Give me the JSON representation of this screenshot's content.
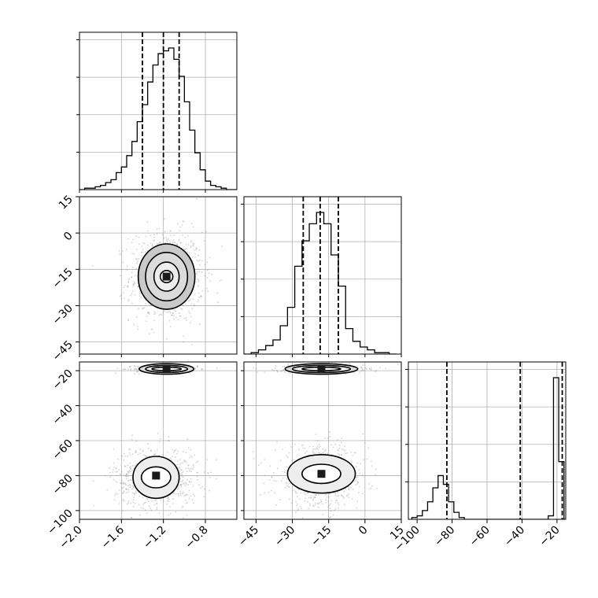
{
  "chart_data": {
    "type": "corner",
    "colors": {
      "line": "#000000",
      "grid": "#b0b0b0",
      "scatter": "#808080",
      "axes_bg": "#ffffff"
    },
    "grid": true,
    "parameters": [
      {
        "index": 0,
        "range": [
          -2.0,
          -0.5
        ],
        "ticks": [
          -2.0,
          -1.6,
          -1.2,
          -0.8
        ],
        "tick_labels": [
          "−2.0",
          "−1.6",
          "−1.2",
          "−0.8"
        ]
      },
      {
        "index": 1,
        "range": [
          -50,
          15
        ],
        "ticks": [
          -45,
          -30,
          -15,
          0,
          15
        ],
        "tick_labels": [
          "−45",
          "−30",
          "−15",
          "0",
          "15"
        ]
      },
      {
        "index": 2,
        "range": [
          -105,
          -15
        ],
        "ticks": [
          -100,
          -80,
          -60,
          -40,
          -20
        ],
        "tick_labels": [
          "−100",
          "−80",
          "−60",
          "−40",
          "−20"
        ]
      }
    ],
    "histograms": [
      {
        "param": 0,
        "bin_edges": [
          -2.0,
          -1.95,
          -1.9,
          -1.85,
          -1.8,
          -1.75,
          -1.7,
          -1.65,
          -1.6,
          -1.55,
          -1.5,
          -1.45,
          -1.4,
          -1.35,
          -1.3,
          -1.25,
          -1.2,
          -1.15,
          -1.1,
          -1.05,
          -1.0,
          -0.95,
          -0.9,
          -0.85,
          -0.8,
          -0.75,
          -0.7,
          -0.65,
          -0.6,
          -0.55,
          -0.5
        ],
        "counts": [
          0,
          1,
          1,
          2,
          3,
          5,
          7,
          12,
          16,
          24,
          34,
          48,
          60,
          76,
          88,
          96,
          98,
          100,
          92,
          80,
          62,
          42,
          26,
          14,
          6,
          3,
          2,
          1,
          0,
          0
        ],
        "quantiles": [
          -1.4,
          -1.2,
          -1.05
        ]
      },
      {
        "param": 1,
        "bin_edges": [
          -50,
          -47,
          -44,
          -41,
          -38,
          -35,
          -32,
          -29,
          -26,
          -23,
          -20,
          -17,
          -14,
          -11,
          -8,
          -5,
          -2,
          1,
          4,
          7,
          10,
          13
        ],
        "counts": [
          0,
          1,
          3,
          6,
          10,
          20,
          33,
          62,
          80,
          92,
          100,
          92,
          70,
          48,
          18,
          9,
          5,
          3,
          1,
          1,
          0
        ],
        "quantiles": [
          -25.5,
          -18.5,
          -11
        ]
      },
      {
        "param": 2,
        "bin_edges": [
          -103,
          -100,
          -97,
          -94,
          -91,
          -88,
          -85,
          -82,
          -79,
          -76,
          -73,
          -70,
          -67,
          -64,
          -61,
          -58,
          -55,
          -52,
          -49,
          -46,
          -43,
          -40,
          -37,
          -34,
          -31,
          -28,
          -25,
          -22,
          -19,
          -16,
          -15
        ],
        "counts": [
          1,
          2,
          5,
          10,
          18,
          25,
          20,
          10,
          4,
          1,
          0,
          0,
          0,
          0,
          0,
          0,
          0,
          0,
          0,
          0,
          0,
          0,
          0,
          0,
          0,
          0,
          2,
          81,
          33,
          0
        ],
        "counts_note_bins": "",
        "quantiles": [
          -83,
          -41,
          -17
        ]
      }
    ],
    "scatter_blobs": [
      {
        "x_param": 0,
        "y_param": 1,
        "center": [
          -1.17,
          -18
        ],
        "spread": [
          0.14,
          7.5
        ],
        "n": 900
      },
      {
        "x_param": 0,
        "y_param": 2,
        "center": [
          -1.17,
          -19
        ],
        "spread": [
          0.12,
          0.9
        ],
        "n": 450
      },
      {
        "x_param": 0,
        "y_param": 2,
        "center": [
          -1.27,
          -81
        ],
        "spread": [
          0.16,
          7
        ],
        "n": 700
      },
      {
        "x_param": 1,
        "y_param": 2,
        "center": [
          -18,
          -19
        ],
        "spread": [
          7,
          0.9
        ],
        "n": 450
      },
      {
        "x_param": 1,
        "y_param": 2,
        "center": [
          -18,
          -81
        ],
        "spread": [
          7.5,
          7
        ],
        "n": 700
      }
    ],
    "contours": [
      {
        "x_param": 0,
        "y_param": 1,
        "center": [
          -1.17,
          -18
        ],
        "radii": [
          [
            0.06,
            2.5
          ],
          [
            0.12,
            6
          ],
          [
            0.2,
            10
          ],
          [
            0.27,
            13.5
          ]
        ]
      },
      {
        "x_param": 0,
        "y_param": 2,
        "center": [
          -1.17,
          -19
        ],
        "radii": [
          [
            0.14,
            1.0
          ],
          [
            0.2,
            2
          ],
          [
            0.26,
            3
          ]
        ]
      },
      {
        "x_param": 0,
        "y_param": 2,
        "center": [
          -1.27,
          -81
        ],
        "radii": [
          [
            0.14,
            6
          ],
          [
            0.22,
            12
          ]
        ]
      },
      {
        "x_param": 1,
        "y_param": 2,
        "center": [
          -18,
          -19
        ],
        "radii": [
          [
            8,
            1.0
          ],
          [
            12,
            2
          ],
          [
            15,
            3
          ]
        ]
      },
      {
        "x_param": 1,
        "y_param": 2,
        "center": [
          -18,
          -79
        ],
        "radii": [
          [
            8,
            5.5
          ],
          [
            14,
            11
          ]
        ]
      }
    ],
    "density_cells": [
      {
        "x_param": 0,
        "y_param": 1,
        "center": [
          -1.17,
          -18
        ]
      },
      {
        "x_param": 0,
        "y_param": 2,
        "center": [
          -1.17,
          -19
        ]
      },
      {
        "x_param": 1,
        "y_param": 2,
        "center": [
          -18,
          -19
        ]
      },
      {
        "x_param": 0,
        "y_param": 2,
        "center": [
          -1.27,
          -80
        ]
      },
      {
        "x_param": 1,
        "y_param": 2,
        "center": [
          -18,
          -79
        ]
      }
    ]
  }
}
